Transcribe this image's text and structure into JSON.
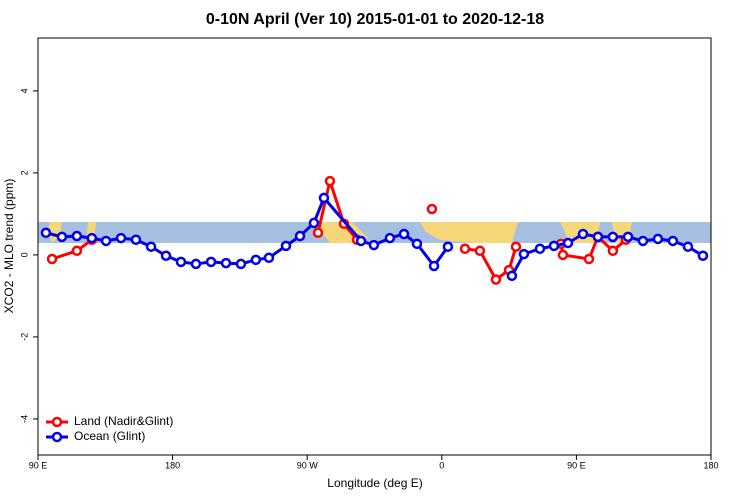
{
  "chart_data": {
    "type": "line",
    "title": "0-10N April (Ver 10)   2015-01-01 to 2020-12-18",
    "x_label": "Longitude (deg E)",
    "y_label": "XCO2 - MLO trend (ppm)",
    "xlim": [
      90,
      540
    ],
    "ylim": [
      -4.88,
      5.29
    ],
    "xticks": [
      {
        "value": 90,
        "label": "90 E"
      },
      180,
      {
        "value": 270,
        "label": "90 W"
      },
      {
        "value": 360,
        "label": "0"
      },
      {
        "value": 450,
        "label": "90 E"
      },
      {
        "value": 540,
        "label": "180"
      }
    ],
    "yticks": [
      -4,
      -2,
      0,
      2,
      4
    ],
    "legend": "bottom-left",
    "series": [
      {
        "name": "Land (Nadir&Glint)",
        "color": "#ff0000",
        "x": [
          99.4,
          116,
          126,
          null,
          277.2,
          285.2,
          294.6,
          303.3,
          null,
          353.4,
          null,
          375.5,
          385.5,
          396.2,
          404.9,
          409.6,
          null,
          439.7,
          441,
          458.4,
          464.4,
          474.4,
          483.1
        ],
        "values": [
          -0.1,
          0.1,
          0.37,
          null,
          0.54,
          1.8,
          0.76,
          0.37,
          null,
          1.12,
          null,
          0.15,
          0.1,
          -0.6,
          -0.37,
          0.2,
          null,
          0.27,
          0,
          -0.1,
          0.44,
          0.1,
          0.37
        ]
      },
      {
        "name": "Ocean (Glint)",
        "color": "#0000ee",
        "x": [
          95.3,
          106,
          116,
          126,
          135.5,
          145.5,
          155.5,
          165.6,
          175.6,
          185.6,
          195.6,
          205.7,
          215.7,
          225.7,
          235.7,
          244.4,
          255.8,
          265.2,
          274.5,
          281.2,
          306,
          314.6,
          325.3,
          334.7,
          343.4,
          354.8,
          364.1,
          null,
          406.9,
          414.9,
          425.6,
          435,
          444.4,
          454.4,
          464.4,
          474.4,
          484.5,
          494.5,
          504.5,
          514.5,
          524.6,
          534.6
        ],
        "values": [
          0.54,
          0.44,
          0.46,
          0.41,
          0.34,
          0.41,
          0.37,
          0.2,
          -0.02,
          -0.17,
          -0.22,
          -0.17,
          -0.2,
          -0.22,
          -0.12,
          -0.07,
          0.22,
          0.46,
          0.78,
          1.39,
          0.34,
          0.24,
          0.41,
          0.51,
          0.27,
          -0.27,
          0.2,
          null,
          -0.51,
          0.02,
          0.15,
          0.22,
          0.29,
          0.51,
          0.44,
          0.44,
          0.44,
          0.34,
          0.39,
          0.34,
          0.2,
          -0.02
        ]
      }
    ]
  }
}
